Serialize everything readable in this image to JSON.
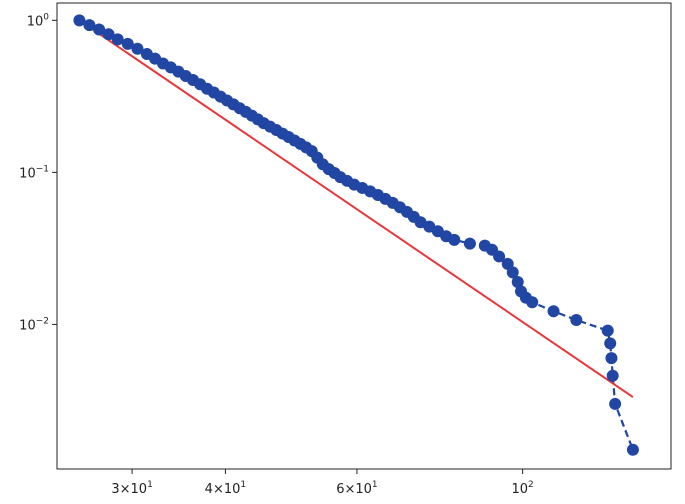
{
  "chart_data": {
    "type": "scatter",
    "title": "",
    "xlabel": "",
    "ylabel": "",
    "x_scale": "log",
    "y_scale": "log",
    "xlim": [
      23.8,
      158
    ],
    "ylim": [
      0.00112,
      1.3
    ],
    "grid": false,
    "x_ticks": [
      {
        "value": 30,
        "base": "3×10",
        "exp": "1"
      },
      {
        "value": 40,
        "base": "4×10",
        "exp": "1"
      },
      {
        "value": 60,
        "base": "6×10",
        "exp": "1"
      },
      {
        "value": 100,
        "base": "10",
        "exp": "2"
      }
    ],
    "y_ticks": [
      {
        "value": 1,
        "base": "10",
        "exp": "0"
      },
      {
        "value": 0.1,
        "base": "10",
        "exp": "−1"
      },
      {
        "value": 0.01,
        "base": "10",
        "exp": "−2"
      }
    ],
    "series": [
      {
        "style": "markers-dashed",
        "color": "#2146a3",
        "points": [
          [
            25.5,
            1.0
          ],
          [
            26.3,
            0.93
          ],
          [
            27.1,
            0.87
          ],
          [
            27.9,
            0.81
          ],
          [
            28.7,
            0.75
          ],
          [
            29.6,
            0.7
          ],
          [
            30.5,
            0.65
          ],
          [
            31.4,
            0.6
          ],
          [
            32.2,
            0.56
          ],
          [
            33.0,
            0.52
          ],
          [
            33.8,
            0.49
          ],
          [
            34.6,
            0.46
          ],
          [
            35.4,
            0.43
          ],
          [
            36.2,
            0.405
          ],
          [
            37.0,
            0.38
          ],
          [
            37.8,
            0.355
          ],
          [
            38.6,
            0.335
          ],
          [
            39.4,
            0.315
          ],
          [
            40.2,
            0.297
          ],
          [
            41.0,
            0.28
          ],
          [
            41.8,
            0.264
          ],
          [
            42.6,
            0.25
          ],
          [
            43.4,
            0.236
          ],
          [
            44.2,
            0.223
          ],
          [
            45.0,
            0.211
          ],
          [
            45.9,
            0.2
          ],
          [
            46.8,
            0.19
          ],
          [
            47.7,
            0.18
          ],
          [
            48.6,
            0.171
          ],
          [
            49.5,
            0.162
          ],
          [
            50.4,
            0.154
          ],
          [
            51.3,
            0.146
          ],
          [
            52.2,
            0.138
          ],
          [
            53.1,
            0.125
          ],
          [
            54.0,
            0.113
          ],
          [
            55.0,
            0.105
          ],
          [
            56.0,
            0.099
          ],
          [
            57.0,
            0.093
          ],
          [
            58.2,
            0.088
          ],
          [
            59.5,
            0.083
          ],
          [
            61.0,
            0.079
          ],
          [
            62.5,
            0.075
          ],
          [
            64.0,
            0.071
          ],
          [
            65.5,
            0.067
          ],
          [
            67.0,
            0.063
          ],
          [
            68.5,
            0.059
          ],
          [
            70.0,
            0.055
          ],
          [
            71.5,
            0.051
          ],
          [
            73.0,
            0.047
          ],
          [
            75.0,
            0.044
          ],
          [
            77.0,
            0.041
          ],
          [
            79.0,
            0.038
          ],
          [
            81.0,
            0.036
          ],
          [
            85.0,
            0.034
          ],
          [
            89.0,
            0.033
          ],
          [
            91.0,
            0.031
          ],
          [
            93.0,
            0.028
          ],
          [
            95.5,
            0.025
          ],
          [
            97.0,
            0.022
          ],
          [
            98.5,
            0.019
          ],
          [
            99.5,
            0.0165
          ],
          [
            101.0,
            0.015
          ],
          [
            103.0,
            0.014
          ],
          [
            110.0,
            0.0122
          ],
          [
            118.0,
            0.0107
          ],
          [
            130.0,
            0.0091
          ],
          [
            131.0,
            0.0075
          ],
          [
            131.5,
            0.006
          ],
          [
            132.0,
            0.0046
          ],
          [
            133.0,
            0.003
          ],
          [
            140.5,
            0.0015
          ]
        ]
      },
      {
        "style": "line",
        "color": "#e8363a",
        "points": [
          [
            25.5,
            1.0
          ],
          [
            140.5,
            0.00333
          ]
        ]
      }
    ]
  }
}
